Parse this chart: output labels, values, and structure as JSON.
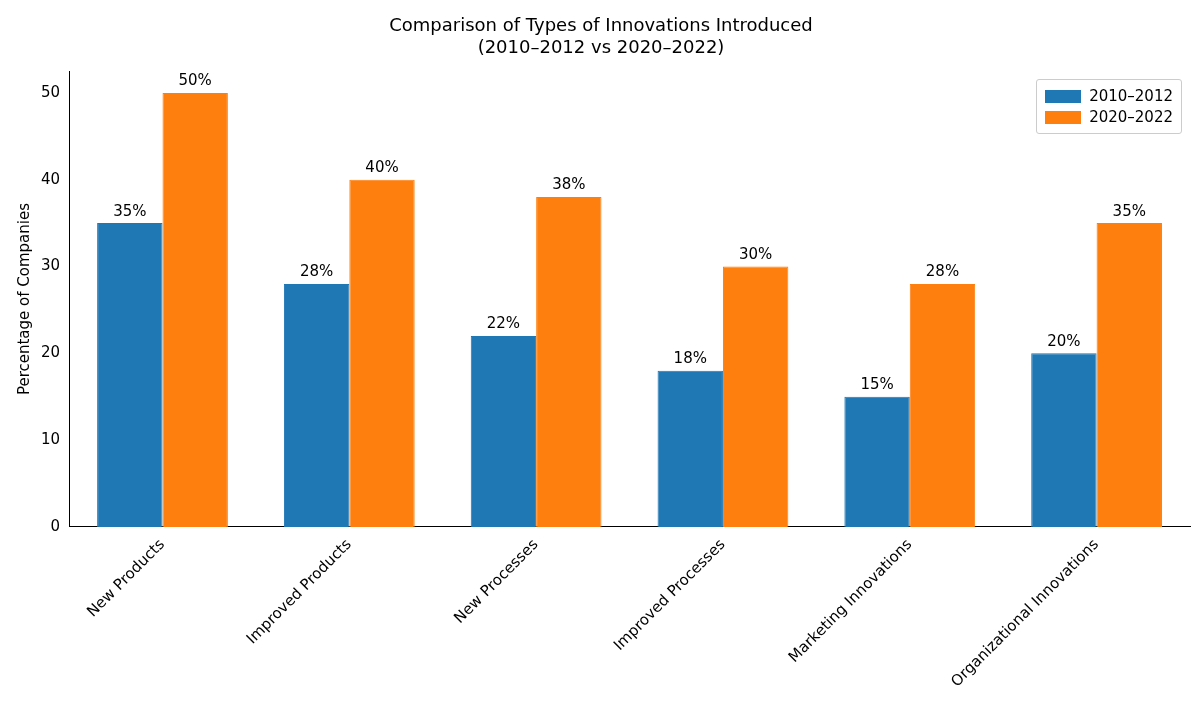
{
  "chart_data": {
    "type": "bar",
    "title": "Comparison of Types of Innovations Introduced\n(2010–2012 vs 2020–2022)",
    "ylabel": "Percentage of Companies",
    "categories": [
      "New Products",
      "Improved Products",
      "New Processes",
      "Improved Processes",
      "Marketing Innovations",
      "Organizational Innovations"
    ],
    "series": [
      {
        "name": "2010–2012",
        "color": "#1f77b4",
        "values": [
          35,
          28,
          22,
          18,
          15,
          20
        ],
        "value_labels": [
          "35%",
          "28%",
          "22%",
          "18%",
          "15%",
          "20%"
        ]
      },
      {
        "name": "2020–2022",
        "color": "#ff7f0e",
        "values": [
          50,
          40,
          38,
          30,
          28,
          35
        ],
        "value_labels": [
          "50%",
          "40%",
          "38%",
          "30%",
          "28%",
          "35%"
        ]
      }
    ],
    "ylim": [
      0,
      52.5
    ],
    "yticks": [
      0,
      10,
      20,
      30,
      40,
      50
    ],
    "legend": "top right"
  }
}
